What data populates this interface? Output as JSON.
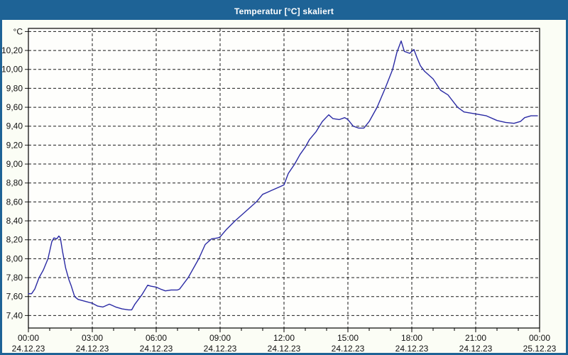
{
  "window": {
    "title": "Temperatur [°C] skaliert"
  },
  "colors": {
    "frame": "#1e6396",
    "titlebar": "#1e6396",
    "title_text": "#ffffff",
    "canvas_bg": "#fbfdf5",
    "plot_bg": "#fefefc",
    "grid": "#1a1a1a",
    "axis_text": "#111111",
    "series_line": "#2a2aa4"
  },
  "chart_data": {
    "type": "line",
    "title": "Temperatur [°C] skaliert",
    "unit_label": "°C",
    "legend": "none",
    "grid": "dashed",
    "y_axis": {
      "grid_min": 7.4,
      "grid_max": 10.4,
      "step": 0.2,
      "label_min": 7.4,
      "label_max": 10.2,
      "decimal_separator": ","
    },
    "x_axis": {
      "hours_span": 24,
      "minor_step_hours": 1,
      "major_step_hours": 3,
      "major_labels": [
        {
          "time": "00:00",
          "date": "24.12.23"
        },
        {
          "time": "03:00",
          "date": "24.12.23"
        },
        {
          "time": "06:00",
          "date": "24.12.23"
        },
        {
          "time": "09:00",
          "date": "24.12.23"
        },
        {
          "time": "12:00",
          "date": "24.12.23"
        },
        {
          "time": "15:00",
          "date": "24.12.23"
        },
        {
          "time": "18:00",
          "date": "24.12.23"
        },
        {
          "time": "21:00",
          "date": "24.12.23"
        },
        {
          "time": "00:00",
          "date": "25.12.23"
        }
      ]
    },
    "points": [
      [
        0.0,
        7.63
      ],
      [
        0.15,
        7.63
      ],
      [
        0.3,
        7.68
      ],
      [
        0.5,
        7.8
      ],
      [
        0.7,
        7.88
      ],
      [
        0.92,
        8.0
      ],
      [
        1.1,
        8.18
      ],
      [
        1.2,
        8.22
      ],
      [
        1.33,
        8.21
      ],
      [
        1.43,
        8.24
      ],
      [
        1.5,
        8.22
      ],
      [
        1.6,
        8.08
      ],
      [
        1.75,
        7.9
      ],
      [
        1.9,
        7.78
      ],
      [
        2.0,
        7.72
      ],
      [
        2.17,
        7.6
      ],
      [
        2.33,
        7.57
      ],
      [
        2.67,
        7.55
      ],
      [
        3.0,
        7.53
      ],
      [
        3.25,
        7.5
      ],
      [
        3.5,
        7.49
      ],
      [
        3.8,
        7.52
      ],
      [
        4.1,
        7.49
      ],
      [
        4.4,
        7.47
      ],
      [
        4.7,
        7.46
      ],
      [
        4.85,
        7.46
      ],
      [
        5.0,
        7.52
      ],
      [
        5.33,
        7.62
      ],
      [
        5.6,
        7.72
      ],
      [
        5.75,
        7.71
      ],
      [
        6.0,
        7.7
      ],
      [
        6.2,
        7.68
      ],
      [
        6.43,
        7.66
      ],
      [
        6.7,
        7.67
      ],
      [
        7.0,
        7.67
      ],
      [
        7.1,
        7.68
      ],
      [
        7.5,
        7.8
      ],
      [
        8.0,
        8.0
      ],
      [
        8.3,
        8.15
      ],
      [
        8.6,
        8.21
      ],
      [
        8.9,
        8.22
      ],
      [
        9.0,
        8.23
      ],
      [
        9.3,
        8.31
      ],
      [
        9.7,
        8.4
      ],
      [
        10.0,
        8.46
      ],
      [
        10.3,
        8.52
      ],
      [
        10.7,
        8.6
      ],
      [
        11.0,
        8.68
      ],
      [
        11.2,
        8.7
      ],
      [
        11.4,
        8.72
      ],
      [
        11.8,
        8.76
      ],
      [
        12.0,
        8.78
      ],
      [
        12.2,
        8.9
      ],
      [
        12.5,
        9.0
      ],
      [
        12.75,
        9.1
      ],
      [
        13.0,
        9.18
      ],
      [
        13.2,
        9.26
      ],
      [
        13.5,
        9.34
      ],
      [
        13.8,
        9.45
      ],
      [
        14.1,
        9.52
      ],
      [
        14.3,
        9.48
      ],
      [
        14.6,
        9.47
      ],
      [
        14.85,
        9.49
      ],
      [
        15.0,
        9.47
      ],
      [
        15.25,
        9.4
      ],
      [
        15.5,
        9.38
      ],
      [
        15.75,
        9.38
      ],
      [
        16.0,
        9.45
      ],
      [
        16.37,
        9.6
      ],
      [
        16.75,
        9.8
      ],
      [
        17.1,
        10.0
      ],
      [
        17.3,
        10.18
      ],
      [
        17.5,
        10.3
      ],
      [
        17.65,
        10.19
      ],
      [
        17.9,
        10.17
      ],
      [
        18.1,
        10.21
      ],
      [
        18.25,
        10.12
      ],
      [
        18.4,
        10.04
      ],
      [
        18.6,
        9.98
      ],
      [
        19.0,
        9.9
      ],
      [
        19.35,
        9.78
      ],
      [
        19.7,
        9.73
      ],
      [
        20.15,
        9.6
      ],
      [
        20.45,
        9.55
      ],
      [
        21.0,
        9.53
      ],
      [
        21.5,
        9.51
      ],
      [
        22.0,
        9.46
      ],
      [
        22.4,
        9.44
      ],
      [
        22.8,
        9.43
      ],
      [
        23.1,
        9.45
      ],
      [
        23.3,
        9.49
      ],
      [
        23.6,
        9.51
      ],
      [
        23.9,
        9.51
      ]
    ]
  }
}
